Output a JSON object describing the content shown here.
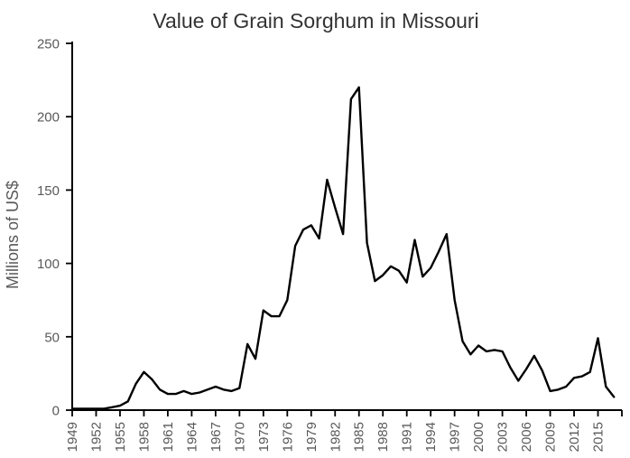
{
  "chart_data": {
    "type": "line",
    "title": "Value of Grain Sorghum in Missouri",
    "xlabel": "",
    "ylabel": "Millions of US$",
    "ylim": [
      0,
      250
    ],
    "yticks": [
      0,
      50,
      100,
      150,
      200,
      250
    ],
    "xtick_years": [
      1949,
      1952,
      1955,
      1958,
      1961,
      1964,
      1967,
      1970,
      1973,
      1976,
      1979,
      1982,
      1985,
      1988,
      1991,
      1994,
      1997,
      2000,
      2003,
      2006,
      2009,
      2012,
      2015
    ],
    "axis_end_year": 2018,
    "xtick_label_rotation": -90,
    "grid": false,
    "legend": "none",
    "x": [
      1949,
      1950,
      1951,
      1952,
      1953,
      1954,
      1955,
      1956,
      1957,
      1958,
      1959,
      1960,
      1961,
      1962,
      1963,
      1964,
      1965,
      1966,
      1967,
      1968,
      1969,
      1970,
      1971,
      1972,
      1973,
      1974,
      1975,
      1976,
      1977,
      1978,
      1979,
      1980,
      1981,
      1982,
      1983,
      1984,
      1985,
      1986,
      1987,
      1988,
      1989,
      1990,
      1991,
      1992,
      1993,
      1994,
      1995,
      1996,
      1997,
      1998,
      1999,
      2000,
      2001,
      2002,
      2003,
      2004,
      2005,
      2006,
      2007,
      2008,
      2009,
      2010,
      2011,
      2012,
      2013,
      2014,
      2015,
      2016,
      2017
    ],
    "values": [
      1,
      1,
      1,
      1,
      1,
      2,
      3,
      6,
      18,
      26,
      21,
      14,
      11,
      11,
      13,
      11,
      12,
      14,
      16,
      14,
      13,
      15,
      45,
      35,
      68,
      64,
      64,
      75,
      112,
      123,
      126,
      117,
      157,
      138,
      120,
      212,
      220,
      114,
      88,
      92,
      98,
      95,
      87,
      116,
      91,
      97,
      108,
      120,
      75,
      47,
      38,
      44,
      40,
      41,
      40,
      29,
      20,
      28,
      37,
      27,
      13,
      14,
      16,
      22,
      23,
      26,
      49,
      16,
      9
    ]
  },
  "colors": {
    "line": "#000000",
    "axis": "#000000",
    "tick_label": "#595959",
    "title": "#333333",
    "background": "#ffffff"
  }
}
